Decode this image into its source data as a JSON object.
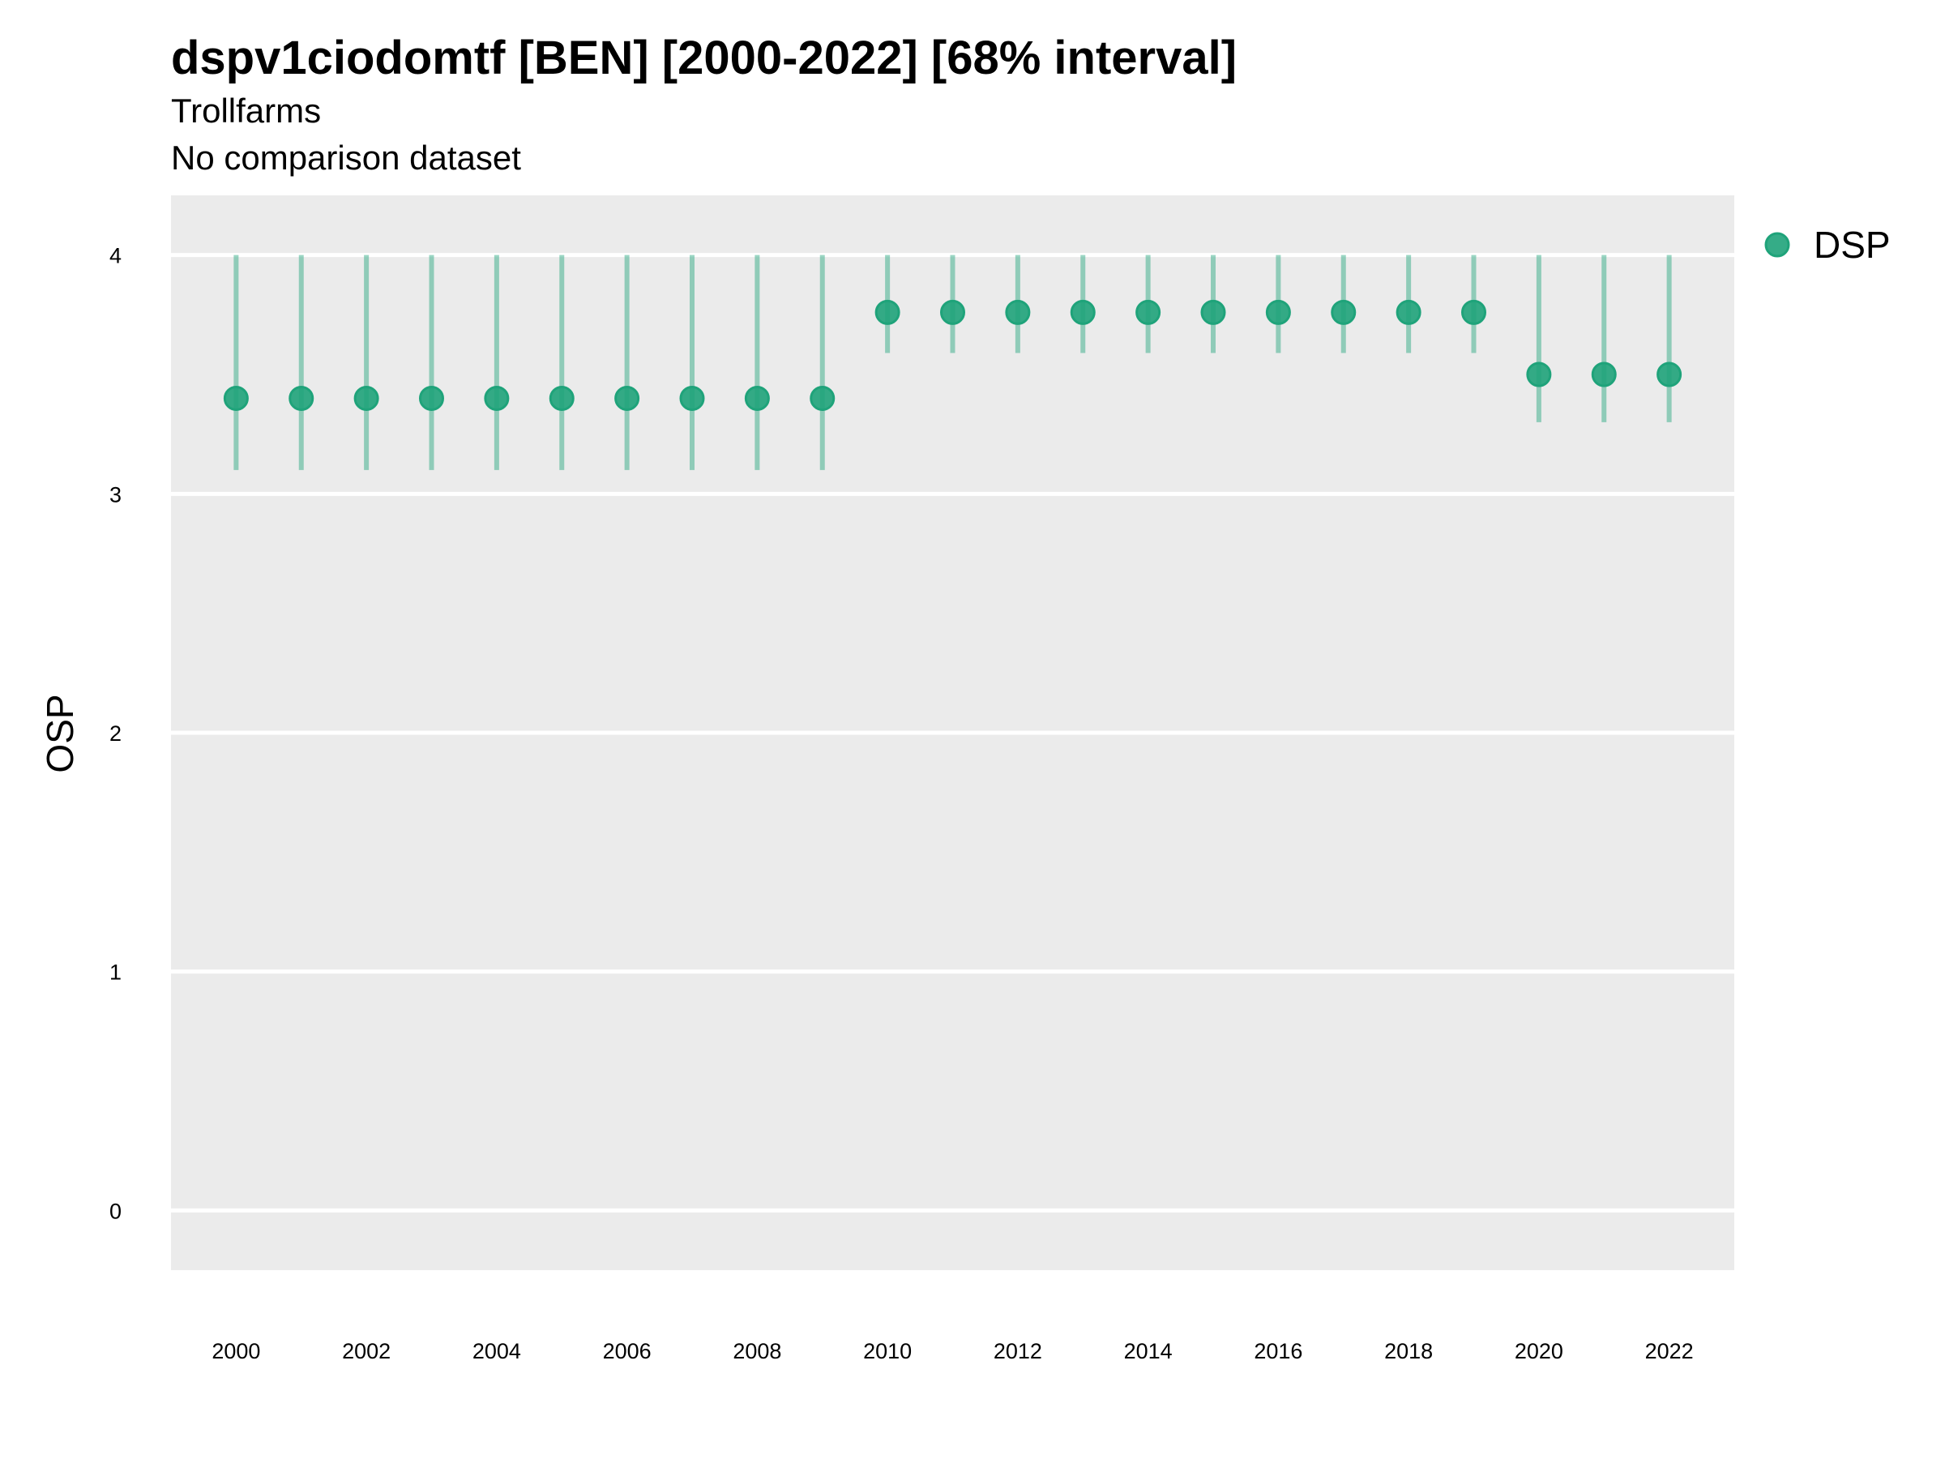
{
  "chart_data": {
    "type": "scatter",
    "title": "dspv1ciodomtf [BEN] [2000-2022] [68% interval]",
    "subtitle": [
      "Trollfarms",
      "No comparison dataset"
    ],
    "xlabel": "",
    "ylabel": "OSP",
    "ylim": [
      -0.25,
      4.25
    ],
    "y_ticks": [
      "0",
      "1",
      "2",
      "3",
      "4"
    ],
    "x_ticks": [
      "2000",
      "2002",
      "2004",
      "2006",
      "2008",
      "2010",
      "2012",
      "2014",
      "2016",
      "2018",
      "2020",
      "2022"
    ],
    "grid": true,
    "legend_position": "right",
    "series": [
      {
        "name": "DSP",
        "color": "#1fa37a",
        "x": [
          2000,
          2001,
          2002,
          2003,
          2004,
          2005,
          2006,
          2007,
          2008,
          2009,
          2010,
          2011,
          2012,
          2013,
          2014,
          2015,
          2016,
          2017,
          2018,
          2019,
          2020,
          2021,
          2022
        ],
        "y": [
          3.4,
          3.4,
          3.4,
          3.4,
          3.4,
          3.4,
          3.4,
          3.4,
          3.4,
          3.4,
          3.76,
          3.76,
          3.76,
          3.76,
          3.76,
          3.76,
          3.76,
          3.76,
          3.76,
          3.76,
          3.5,
          3.5,
          3.5
        ],
        "lower": [
          3.1,
          3.1,
          3.1,
          3.1,
          3.1,
          3.1,
          3.1,
          3.1,
          3.1,
          3.1,
          3.59,
          3.59,
          3.59,
          3.59,
          3.59,
          3.59,
          3.59,
          3.59,
          3.59,
          3.59,
          3.3,
          3.3,
          3.3
        ],
        "upper": [
          4.0,
          4.0,
          4.0,
          4.0,
          4.0,
          4.0,
          4.0,
          4.0,
          4.0,
          4.0,
          4.0,
          4.0,
          4.0,
          4.0,
          4.0,
          4.0,
          4.0,
          4.0,
          4.0,
          4.0,
          4.0,
          4.0,
          4.0
        ]
      }
    ]
  }
}
